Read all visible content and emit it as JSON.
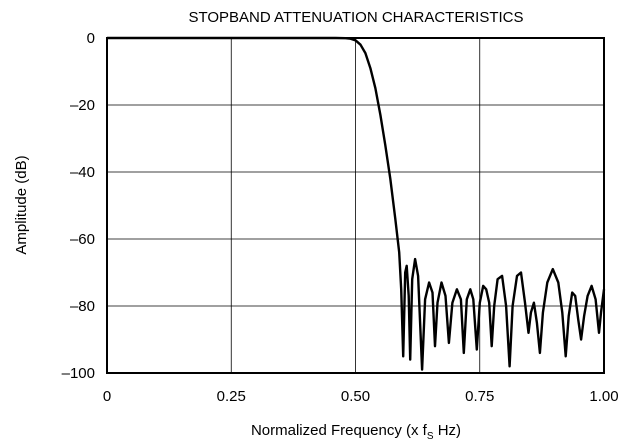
{
  "chart_data": {
    "type": "line",
    "title": "STOPBAND ATTENUATION CHARACTERISTICS",
    "xlabel": {
      "before": "Normalized Frequency (x f",
      "sub": "S",
      "after": " Hz)"
    },
    "ylabel": "Amplitude (dB)",
    "xlim": [
      0,
      1.0
    ],
    "ylim": [
      -100,
      0
    ],
    "x_ticks": [
      {
        "value": 0,
        "label": "0"
      },
      {
        "value": 0.25,
        "label": "0.25"
      },
      {
        "value": 0.5,
        "label": "0.50"
      },
      {
        "value": 0.75,
        "label": "0.75"
      },
      {
        "value": 1.0,
        "label": "1.00"
      }
    ],
    "y_ticks": [
      {
        "value": 0,
        "label": "0"
      },
      {
        "value": -20,
        "label": "–20"
      },
      {
        "value": -40,
        "label": "–40"
      },
      {
        "value": -60,
        "label": "–60"
      },
      {
        "value": -80,
        "label": "–80"
      },
      {
        "value": -100,
        "label": "–100"
      }
    ],
    "grid": true,
    "series": [
      {
        "color": "#000000",
        "points": [
          [
            0.0,
            0.0
          ],
          [
            0.46,
            0.0
          ],
          [
            0.48,
            -0.05
          ],
          [
            0.49,
            -0.2
          ],
          [
            0.5,
            -0.7
          ],
          [
            0.51,
            -2.0
          ],
          [
            0.52,
            -4.5
          ],
          [
            0.53,
            -9.0
          ],
          [
            0.54,
            -15.0
          ],
          [
            0.55,
            -23.0
          ],
          [
            0.56,
            -32.0
          ],
          [
            0.57,
            -42.0
          ],
          [
            0.58,
            -54.0
          ],
          [
            0.588,
            -64.0
          ],
          [
            0.592,
            -75.0
          ],
          [
            0.596,
            -95.0
          ],
          [
            0.6,
            -70.0
          ],
          [
            0.603,
            -68.0
          ],
          [
            0.607,
            -77.0
          ],
          [
            0.61,
            -96.0
          ],
          [
            0.614,
            -72.0
          ],
          [
            0.62,
            -66.0
          ],
          [
            0.626,
            -71.0
          ],
          [
            0.634,
            -99.0
          ],
          [
            0.64,
            -78.0
          ],
          [
            0.648,
            -73.0
          ],
          [
            0.655,
            -76.0
          ],
          [
            0.66,
            -92.0
          ],
          [
            0.665,
            -79.0
          ],
          [
            0.673,
            -73.0
          ],
          [
            0.681,
            -77.0
          ],
          [
            0.688,
            -91.0
          ],
          [
            0.695,
            -79.0
          ],
          [
            0.704,
            -75.0
          ],
          [
            0.712,
            -78.0
          ],
          [
            0.718,
            -94.0
          ],
          [
            0.724,
            -78.0
          ],
          [
            0.731,
            -75.0
          ],
          [
            0.737,
            -78.0
          ],
          [
            0.744,
            -93.0
          ],
          [
            0.75,
            -79.0
          ],
          [
            0.757,
            -74.0
          ],
          [
            0.763,
            -75.0
          ],
          [
            0.769,
            -79.0
          ],
          [
            0.774,
            -92.0
          ],
          [
            0.779,
            -80.0
          ],
          [
            0.786,
            -72.0
          ],
          [
            0.795,
            -71.0
          ],
          [
            0.803,
            -80.0
          ],
          [
            0.81,
            -98.0
          ],
          [
            0.816,
            -80.0
          ],
          [
            0.825,
            -71.0
          ],
          [
            0.833,
            -70.0
          ],
          [
            0.841,
            -79.0
          ],
          [
            0.848,
            -88.0
          ],
          [
            0.853,
            -82.0
          ],
          [
            0.859,
            -79.0
          ],
          [
            0.865,
            -85.0
          ],
          [
            0.871,
            -94.0
          ],
          [
            0.877,
            -82.0
          ],
          [
            0.886,
            -73.0
          ],
          [
            0.897,
            -69.0
          ],
          [
            0.908,
            -73.0
          ],
          [
            0.916,
            -82.0
          ],
          [
            0.923,
            -95.0
          ],
          [
            0.929,
            -83.0
          ],
          [
            0.936,
            -76.0
          ],
          [
            0.942,
            -77.0
          ],
          [
            0.948,
            -84.0
          ],
          [
            0.954,
            -90.0
          ],
          [
            0.96,
            -83.0
          ],
          [
            0.967,
            -77.0
          ],
          [
            0.975,
            -74.0
          ],
          [
            0.983,
            -78.0
          ],
          [
            0.99,
            -88.0
          ],
          [
            0.994,
            -82.0
          ],
          [
            1.0,
            -75.0
          ]
        ]
      }
    ]
  }
}
